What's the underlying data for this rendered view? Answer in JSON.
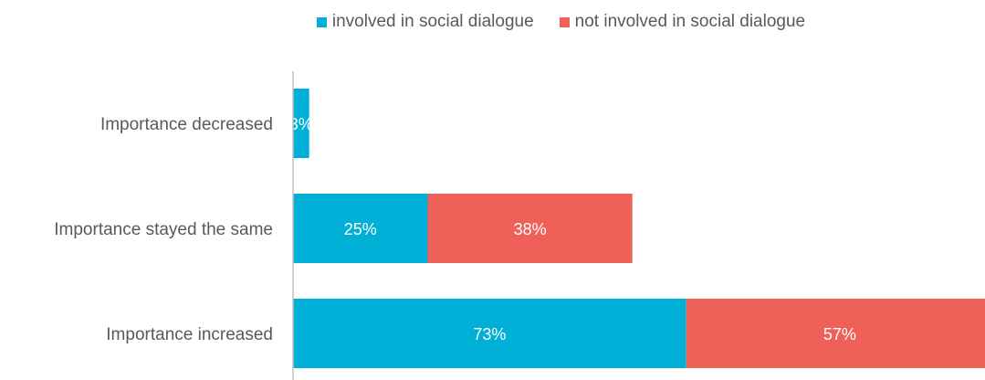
{
  "chart_data": {
    "type": "bar",
    "orientation": "horizontal",
    "stacked": true,
    "categories": [
      "Importance decreased",
      "Importance stayed the same",
      "Importance increased"
    ],
    "series": [
      {
        "name": "involved in social dialogue",
        "color": "#00B0D6",
        "values": [
          3,
          25,
          73
        ],
        "labels": [
          "3%",
          "25%",
          "73%"
        ]
      },
      {
        "name": "not involved in social dialogue",
        "color": "#EF6059",
        "values": [
          0,
          38,
          57
        ],
        "labels": [
          "",
          "38%",
          "57%"
        ]
      }
    ],
    "legend_position": "top",
    "grid": false
  }
}
